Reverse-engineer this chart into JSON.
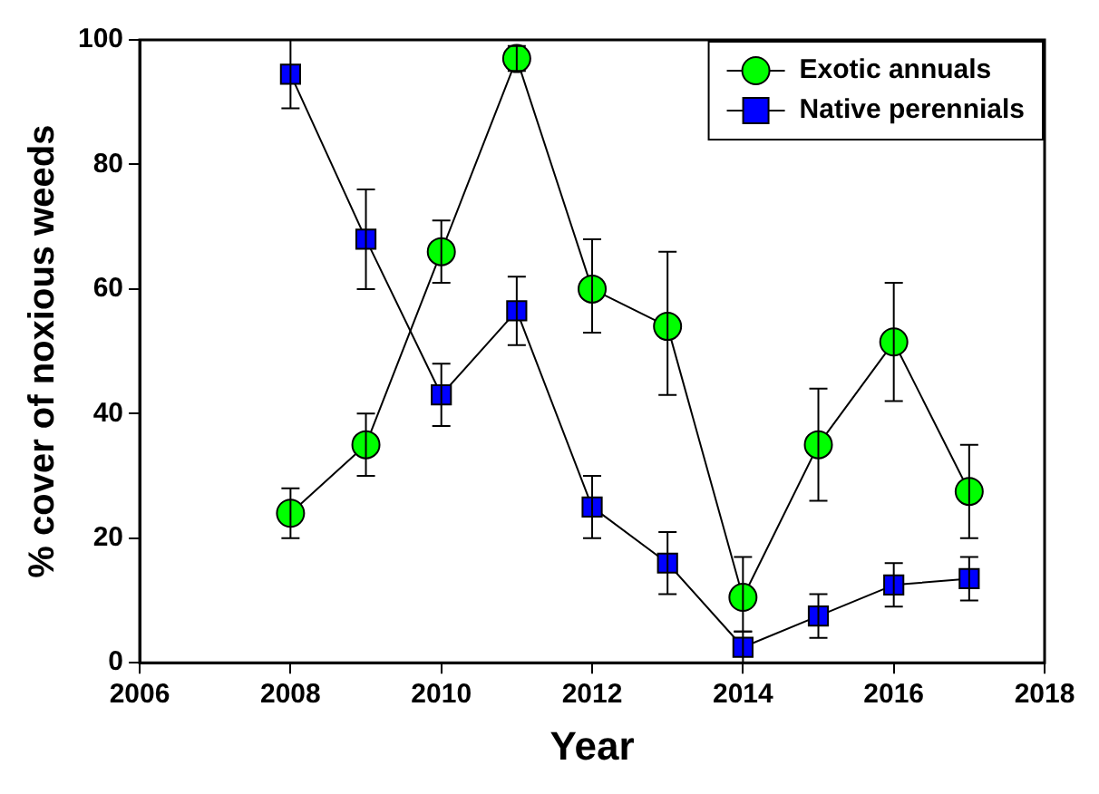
{
  "chart_data": {
    "type": "line",
    "xlabel": "Year",
    "ylabel": "% cover of noxious weeds",
    "x": [
      2008,
      2009,
      2010,
      2011,
      2012,
      2013,
      2014,
      2015,
      2016,
      2017
    ],
    "series": [
      {
        "name": "Exotic annuals",
        "color": "#00ff00",
        "marker": "circle",
        "values": [
          24,
          35,
          66,
          97,
          60,
          54,
          10.5,
          35,
          51.5,
          27.5
        ],
        "errors": [
          [
            20,
            28
          ],
          [
            30,
            40
          ],
          [
            61,
            71
          ],
          [
            95,
            99
          ],
          [
            53,
            68
          ],
          [
            43,
            66
          ],
          [
            5,
            17
          ],
          [
            26,
            44
          ],
          [
            42,
            61
          ],
          [
            20,
            35
          ]
        ]
      },
      {
        "name": "Native perennials",
        "color": "#0000ff",
        "marker": "square",
        "values": [
          94.5,
          68,
          43,
          56.5,
          25,
          16,
          2.5,
          7.5,
          12.5,
          13.5
        ],
        "errors": [
          [
            89,
            100
          ],
          [
            60,
            76
          ],
          [
            38,
            48
          ],
          [
            51,
            62
          ],
          [
            20,
            30
          ],
          [
            11,
            21
          ],
          [
            0,
            5
          ],
          [
            4,
            11
          ],
          [
            9,
            16
          ],
          [
            10,
            17
          ]
        ]
      }
    ],
    "xlim": [
      2006,
      2018
    ],
    "xticks": [
      2006,
      2008,
      2010,
      2012,
      2014,
      2016,
      2018
    ],
    "ylim": [
      0,
      100
    ],
    "yticks": [
      0,
      20,
      40,
      60,
      80,
      100
    ],
    "grid": false,
    "legend": "top right",
    "line_style": "solid"
  }
}
